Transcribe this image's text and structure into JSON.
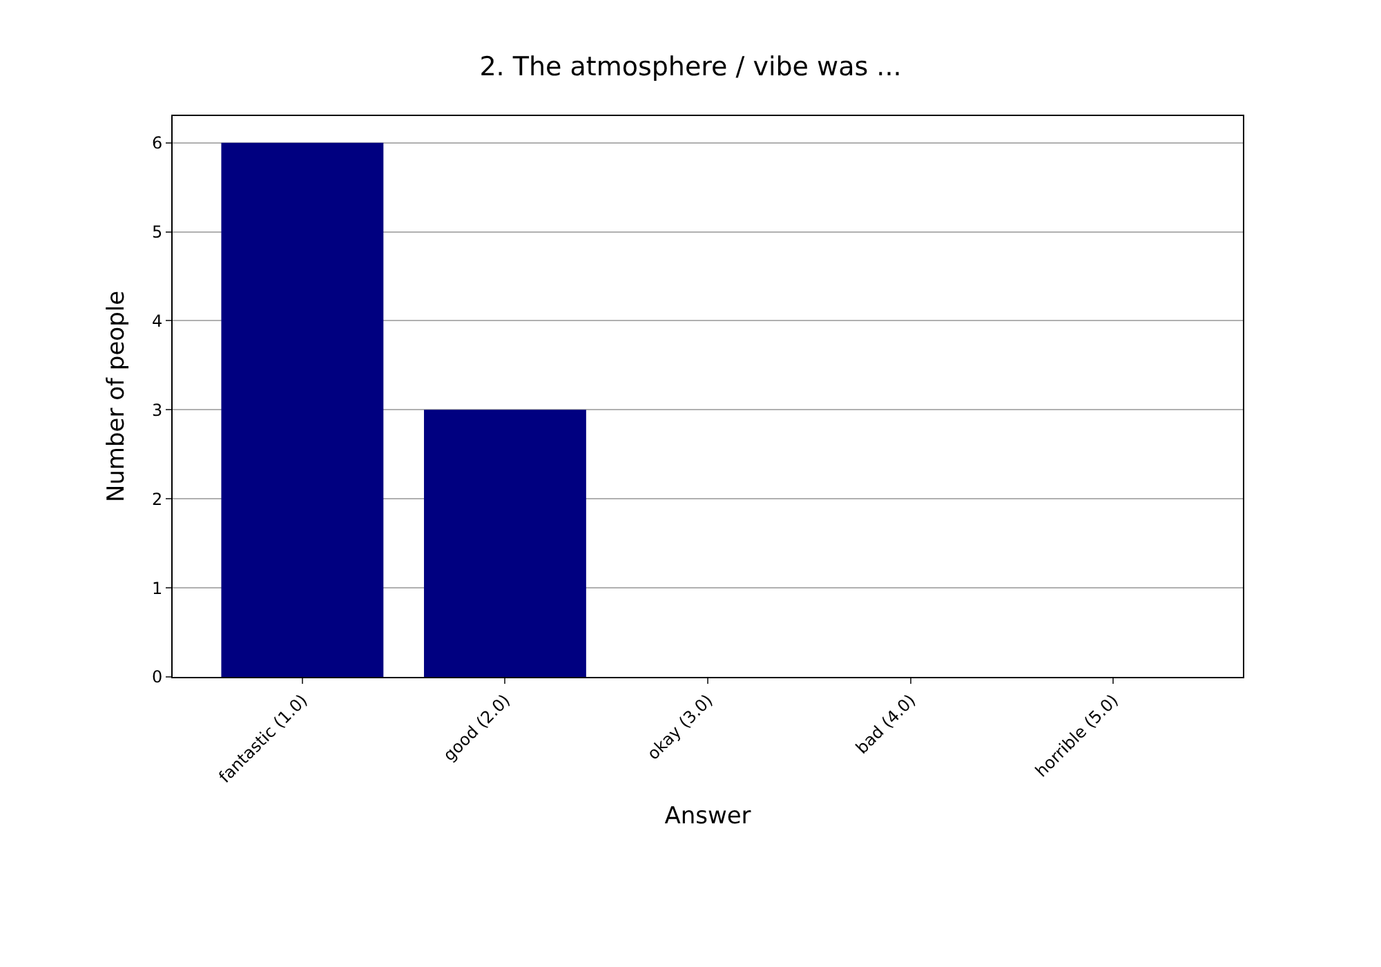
{
  "chart_data": {
    "type": "bar",
    "title": "2. The atmosphere / vibe was ...",
    "xlabel": "Answer",
    "ylabel": "Number of people",
    "categories": [
      "fantastic (1.0)",
      "good (2.0)",
      "okay (3.0)",
      "bad (4.0)",
      "horrible (5.0)"
    ],
    "values": [
      6,
      3,
      0,
      0,
      0
    ],
    "color": "#000080",
    "ylim": [
      0,
      6.3
    ],
    "yticks": [
      0,
      1,
      2,
      3,
      4,
      5,
      6
    ],
    "grid": "y"
  }
}
